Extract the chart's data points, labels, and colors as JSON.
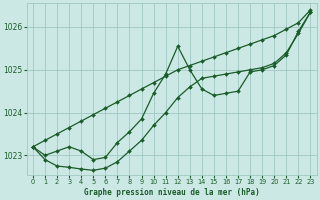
{
  "background_color": "#cce8e4",
  "grid_color": "#9fc8c2",
  "line_color": "#1a5c2a",
  "text_color": "#1a5c2a",
  "xlabel": "Graphe pression niveau de la mer (hPa)",
  "ylim": [
    1022.55,
    1026.55
  ],
  "xlim": [
    -0.5,
    23.5
  ],
  "yticks": [
    1023,
    1024,
    1025,
    1026
  ],
  "xticks": [
    0,
    1,
    2,
    3,
    4,
    5,
    6,
    7,
    8,
    9,
    10,
    11,
    12,
    13,
    14,
    15,
    16,
    17,
    18,
    19,
    20,
    21,
    22,
    23
  ],
  "series": [
    {
      "y": [
        1023.2,
        1023.35,
        1023.5,
        1023.65,
        1023.8,
        1023.95,
        1024.1,
        1024.25,
        1024.4,
        1024.55,
        1024.7,
        1024.85,
        1025.0,
        1025.1,
        1025.2,
        1025.3,
        1025.4,
        1025.5,
        1025.6,
        1025.7,
        1025.8,
        1025.95,
        1026.1,
        1026.4
      ]
    },
    {
      "y": [
        1023.2,
        1022.9,
        1022.75,
        1022.72,
        1022.68,
        1022.65,
        1022.7,
        1022.85,
        1023.1,
        1023.35,
        1023.7,
        1024.0,
        1024.35,
        1024.6,
        1024.8,
        1024.85,
        1024.9,
        1024.95,
        1025.0,
        1025.05,
        1025.15,
        1025.4,
        1025.85,
        1026.35
      ]
    },
    {
      "y": [
        1023.2,
        1023.0,
        1023.1,
        1023.2,
        1023.1,
        1022.9,
        1022.95,
        1023.3,
        1023.55,
        1023.85,
        1024.45,
        1024.9,
        1025.55,
        1025.0,
        1024.55,
        1024.4,
        1024.45,
        1024.5,
        1024.95,
        1025.0,
        1025.1,
        1025.35,
        1025.9,
        1026.35
      ]
    }
  ],
  "marker": "D",
  "marker_size": 2.0,
  "line_width": 0.9
}
